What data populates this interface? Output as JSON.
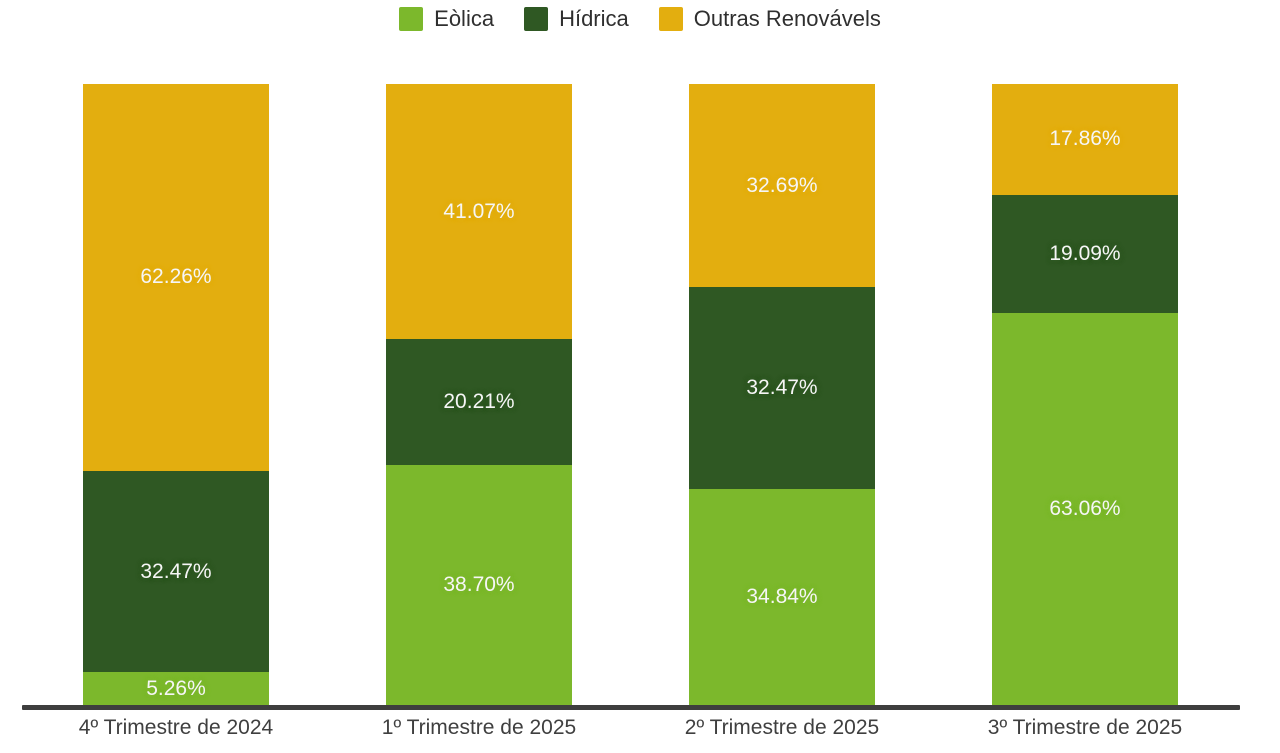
{
  "chart_data": {
    "type": "bar",
    "subtype": "stacked-100-percent",
    "title": "",
    "xlabel": "",
    "ylabel": "",
    "ylim": [
      0,
      100
    ],
    "grid": false,
    "legend_position": "top-center",
    "value_label_format": "two-decimals-percent-inside-segments",
    "categories": [
      "4º Trimestre de 2024",
      "1º Trimestre de 2025",
      "2º Trimestre de 2025",
      "3º Trimestre de 2025"
    ],
    "series": [
      {
        "name": "Eòlica",
        "color": "#7cb82c",
        "values": [
          5.26,
          38.7,
          34.84,
          63.06
        ]
      },
      {
        "name": "Hídrica",
        "color": "#2f5823",
        "values": [
          32.47,
          20.21,
          32.47,
          19.09
        ]
      },
      {
        "name": "Outras Renovávels",
        "color": "#e3ae0f",
        "values": [
          62.26,
          41.07,
          32.69,
          17.86
        ]
      }
    ],
    "segment_labels": [
      [
        "5.26%",
        "38.70%",
        "34.84%",
        "63.06%"
      ],
      [
        "32.47%",
        "20.21%",
        "32.47%",
        "19.09%"
      ],
      [
        "62.26%",
        "41.07%",
        "32.69%",
        "17.86%"
      ]
    ]
  },
  "colors": {
    "background": "#ffffff",
    "axis_line": "#3e3e3e",
    "axis_label_text": "#3f3f3f",
    "legend_text": "#2f2f2f",
    "data_label_text": "#f6f6f6"
  }
}
